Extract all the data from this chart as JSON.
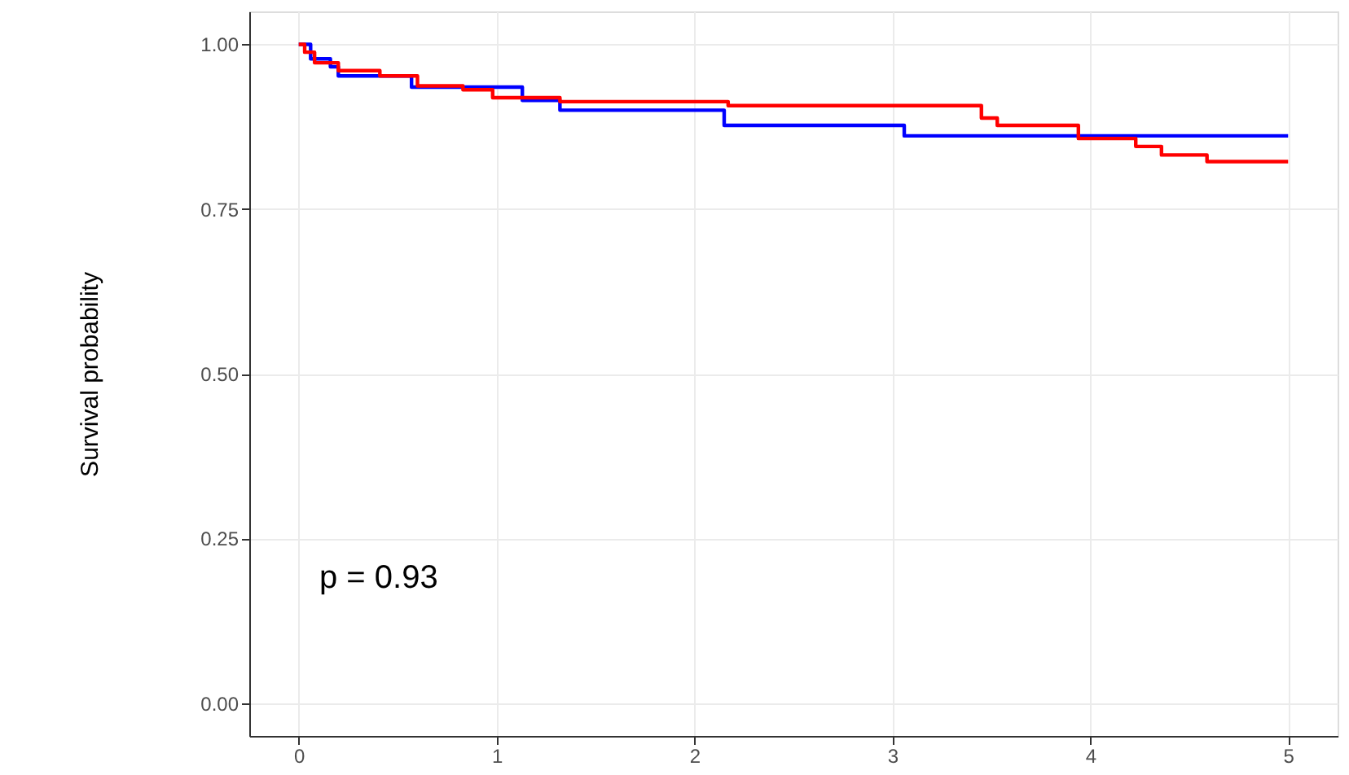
{
  "chart_data": {
    "type": "step",
    "ylabel": "Survival probability",
    "annotations": [
      "p = 0.93"
    ],
    "xlim": [
      -0.25,
      5.25
    ],
    "ylim": [
      -0.05,
      1.05
    ],
    "xticks": [
      0,
      1,
      2,
      3,
      4,
      5
    ],
    "yticks": [
      {
        "value": 0,
        "label": "0.00"
      },
      {
        "value": 0.25,
        "label": "0.25"
      },
      {
        "value": 0.5,
        "label": "0.50"
      },
      {
        "value": 0.75,
        "label": "0.75"
      },
      {
        "value": 1,
        "label": "1.00"
      }
    ],
    "grid": true,
    "line_style": "solid",
    "series": [
      {
        "color": "#0000ff",
        "x": [
          0,
          0.06,
          0.16,
          0.2,
          0.57,
          1.13,
          1.32,
          2.15,
          3.06,
          5.0
        ],
        "values": [
          1.0,
          0.978,
          0.966,
          0.952,
          0.935,
          0.915,
          0.9,
          0.877,
          0.861,
          0.861
        ]
      },
      {
        "color": "#ff0000",
        "x": [
          0,
          0.03,
          0.08,
          0.2,
          0.41,
          0.6,
          0.83,
          0.98,
          1.32,
          2.17,
          3.45,
          3.53,
          3.94,
          4.23,
          4.36,
          4.59,
          5.0
        ],
        "values": [
          1.0,
          0.988,
          0.972,
          0.96,
          0.952,
          0.937,
          0.931,
          0.919,
          0.913,
          0.907,
          0.888,
          0.877,
          0.857,
          0.845,
          0.832,
          0.822,
          0.822
        ]
      }
    ]
  }
}
